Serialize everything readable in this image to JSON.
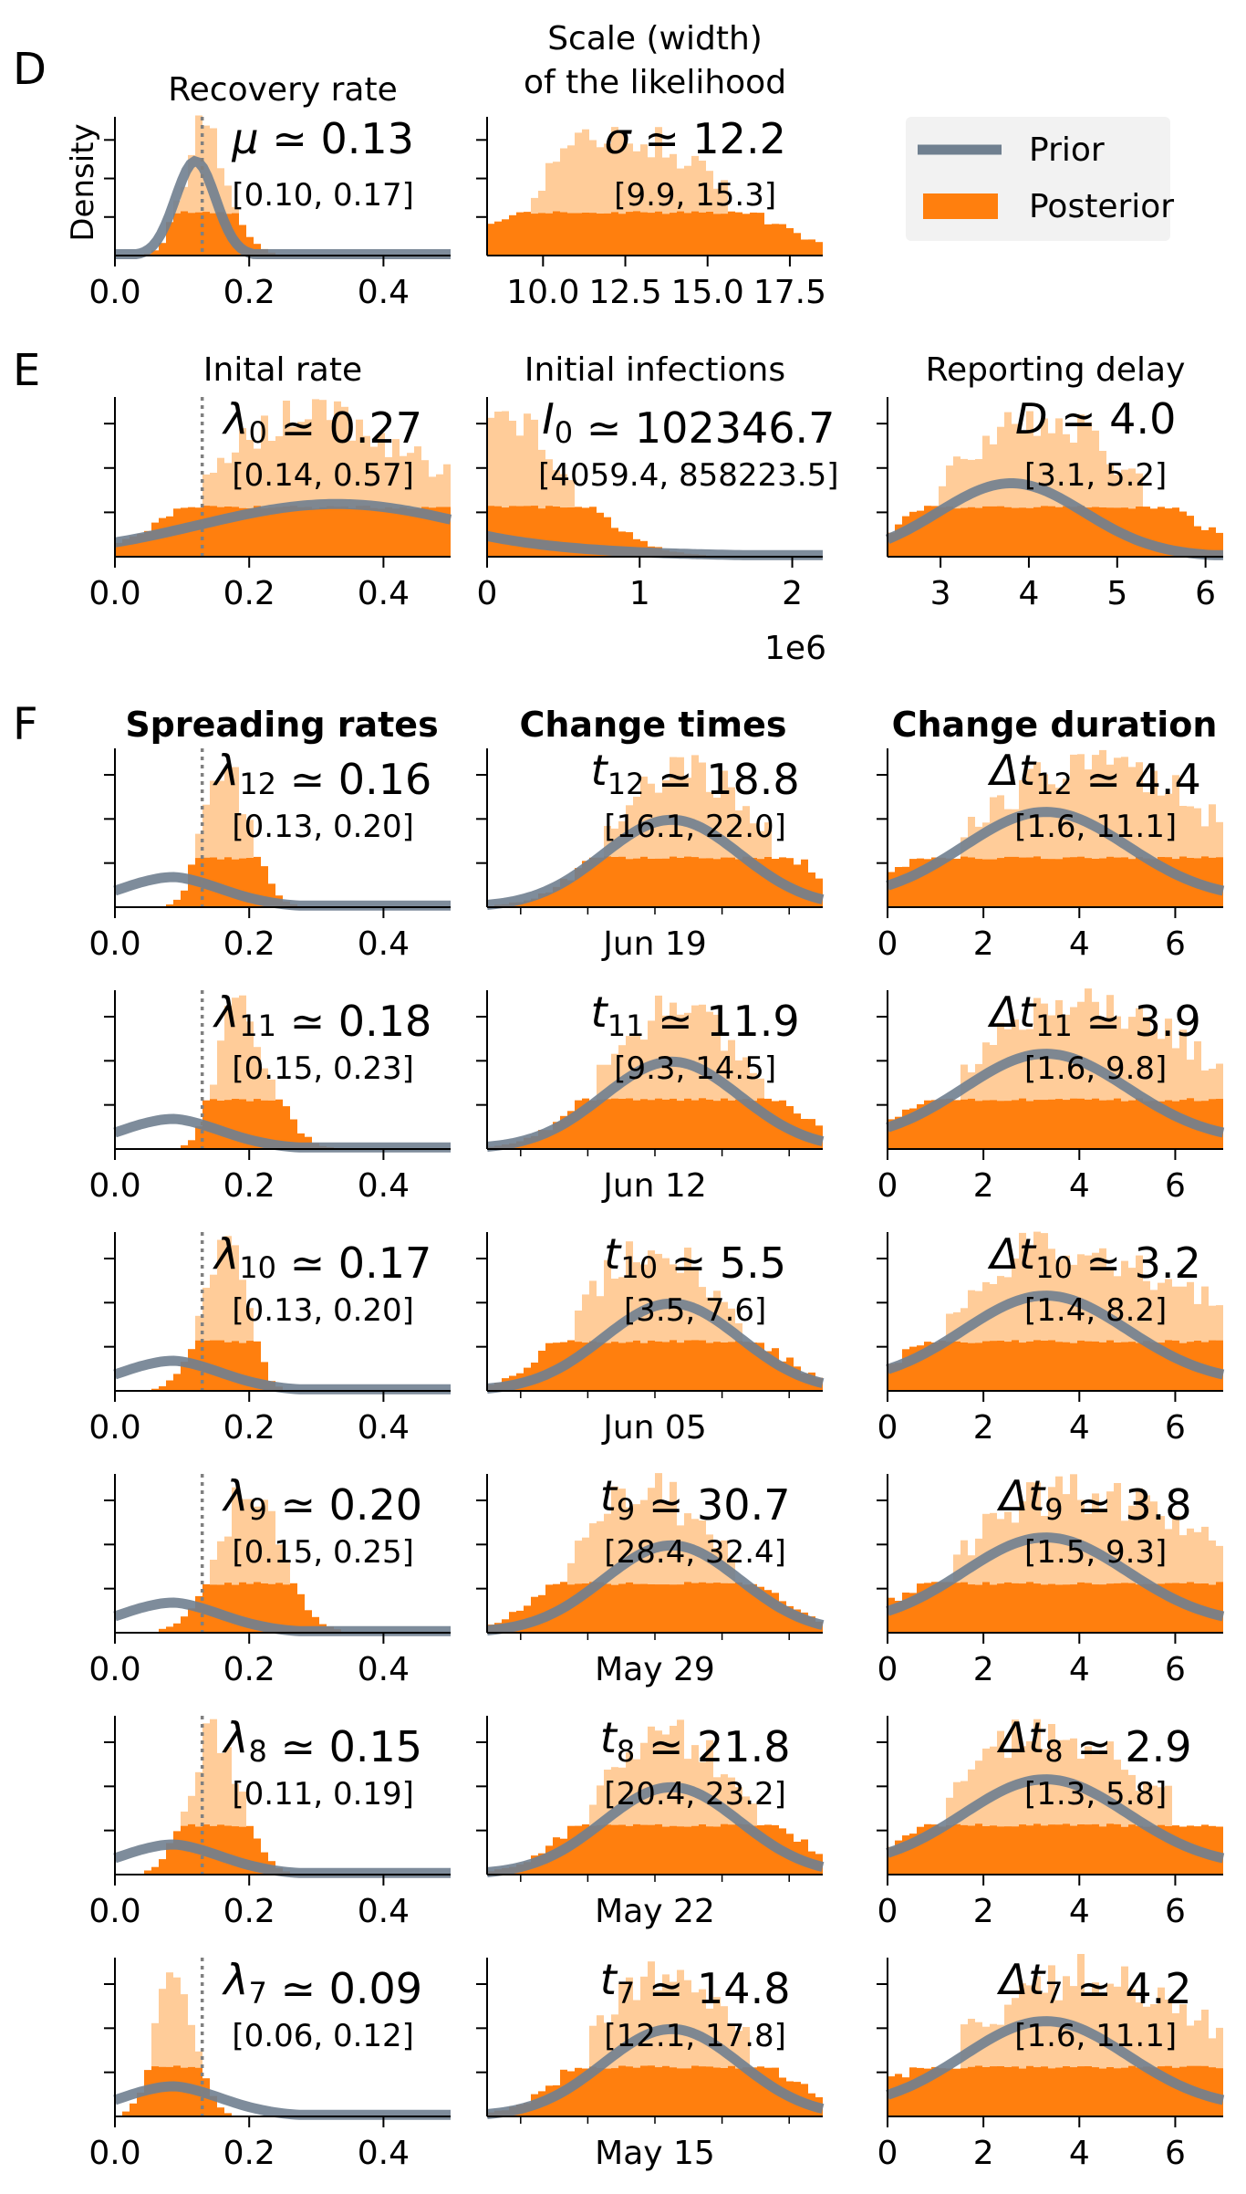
{
  "colors": {
    "prior": "#708090",
    "posterior": "#ff7f0e",
    "posterior_light": "#ffcc99",
    "marker": "#000000"
  },
  "legend": {
    "prior": "Prior",
    "posterior": "Posterior"
  },
  "panel_letters": {
    "D": "D",
    "E": "E",
    "F": "F"
  },
  "column_headers": {
    "spreading": "Spreading rates",
    "change_times": "Change times",
    "change_duration": "Change duration"
  },
  "axis_label_density": "Density",
  "tick_sets": {
    "rate": [
      "0.0",
      "0.2",
      "0.4"
    ],
    "sigma": [
      "10.0",
      "12.5",
      "15.0",
      "17.5"
    ],
    "infections": [
      "0",
      "1",
      "2"
    ],
    "delay": [
      "3",
      "4",
      "5",
      "6"
    ],
    "duration": [
      "0",
      "2",
      "4",
      "6"
    ]
  },
  "infections_offset": "1e6",
  "chart_data": [
    {
      "id": "recovery",
      "type": "histogram",
      "title": "Recovery rate",
      "xlim": [
        0,
        0.5
      ],
      "ticks": "rate",
      "vline": 0.13,
      "annotation": {
        "symbol": "μ",
        "sub": "",
        "value": "0.13",
        "ci": "[0.10, 0.17]"
      }
    },
    {
      "id": "scale",
      "type": "histogram",
      "title_lines": [
        "Scale (width)",
        "of the likelihood"
      ],
      "xlim": [
        8.3,
        18.5
      ],
      "ticks": "sigma",
      "annotation": {
        "symbol": "σ",
        "sub": "",
        "value": "12.2",
        "ci": "[9.9, 15.3]"
      }
    },
    {
      "id": "lambda0",
      "type": "histogram",
      "title": "Inital rate",
      "xlim": [
        0,
        0.5
      ],
      "ticks": "rate",
      "vline": 0.13,
      "annotation": {
        "symbol": "λ",
        "sub": "0",
        "value": "0.27",
        "ci": "[0.14, 0.57]"
      }
    },
    {
      "id": "I0",
      "type": "histogram",
      "title": "Initial infections",
      "xlim": [
        0,
        2.2
      ],
      "ticks": "infections",
      "x_unit": "1e6",
      "annotation": {
        "symbol": "I",
        "sub": "0",
        "value": "102346.7",
        "ci": "[4059.4, 858223.5]"
      }
    },
    {
      "id": "delay",
      "type": "histogram",
      "title": "Reporting delay",
      "xlim": [
        2.4,
        6.2
      ],
      "ticks": "delay",
      "annotation": {
        "symbol": "D",
        "sub": "",
        "value": "4.0",
        "ci": "[3.1, 5.2]"
      }
    },
    {
      "id": "l12",
      "type": "histogram",
      "xlim": [
        0,
        0.5
      ],
      "ticks": "rate",
      "vline": 0.13,
      "annotation": {
        "symbol": "λ",
        "sub": "12",
        "value": "0.16",
        "ci": "[0.13, 0.20]"
      }
    },
    {
      "id": "t12",
      "type": "histogram",
      "x_tick": "Jun 19",
      "annotation": {
        "symbol": "t",
        "sub": "12",
        "value": "18.8",
        "ci": "[16.1, 22.0]"
      }
    },
    {
      "id": "d12",
      "type": "histogram",
      "xlim": [
        0,
        7
      ],
      "ticks": "duration",
      "annotation": {
        "symbol": "Δt",
        "sub": "12",
        "value": "4.4",
        "ci": "[1.6, 11.1]"
      }
    },
    {
      "id": "l11",
      "type": "histogram",
      "xlim": [
        0,
        0.5
      ],
      "ticks": "rate",
      "vline": 0.13,
      "annotation": {
        "symbol": "λ",
        "sub": "11",
        "value": "0.18",
        "ci": "[0.15, 0.23]"
      }
    },
    {
      "id": "t11",
      "type": "histogram",
      "x_tick": "Jun 12",
      "annotation": {
        "symbol": "t",
        "sub": "11",
        "value": "11.9",
        "ci": "[9.3, 14.5]"
      }
    },
    {
      "id": "d11",
      "type": "histogram",
      "xlim": [
        0,
        7
      ],
      "ticks": "duration",
      "annotation": {
        "symbol": "Δt",
        "sub": "11",
        "value": "3.9",
        "ci": "[1.6, 9.8]"
      }
    },
    {
      "id": "l10",
      "type": "histogram",
      "xlim": [
        0,
        0.5
      ],
      "ticks": "rate",
      "vline": 0.13,
      "annotation": {
        "symbol": "λ",
        "sub": "10",
        "value": "0.17",
        "ci": "[0.13, 0.20]"
      }
    },
    {
      "id": "t10",
      "type": "histogram",
      "x_tick": "Jun 05",
      "annotation": {
        "symbol": "t",
        "sub": "10",
        "value": "5.5",
        "ci": "[3.5, 7.6]"
      }
    },
    {
      "id": "d10",
      "type": "histogram",
      "xlim": [
        0,
        7
      ],
      "ticks": "duration",
      "annotation": {
        "symbol": "Δt",
        "sub": "10",
        "value": "3.2",
        "ci": "[1.4, 8.2]"
      }
    },
    {
      "id": "l9",
      "type": "histogram",
      "xlim": [
        0,
        0.5
      ],
      "ticks": "rate",
      "vline": 0.13,
      "annotation": {
        "symbol": "λ",
        "sub": "9",
        "value": "0.20",
        "ci": "[0.15, 0.25]"
      }
    },
    {
      "id": "t9",
      "type": "histogram",
      "x_tick": "May 29",
      "annotation": {
        "symbol": "t",
        "sub": "9",
        "value": "30.7",
        "ci": "[28.4, 32.4]"
      }
    },
    {
      "id": "d9",
      "type": "histogram",
      "xlim": [
        0,
        7
      ],
      "ticks": "duration",
      "annotation": {
        "symbol": "Δt",
        "sub": "9",
        "value": "3.8",
        "ci": "[1.5, 9.3]"
      }
    },
    {
      "id": "l8",
      "type": "histogram",
      "xlim": [
        0,
        0.5
      ],
      "ticks": "rate",
      "vline": 0.13,
      "annotation": {
        "symbol": "λ",
        "sub": "8",
        "value": "0.15",
        "ci": "[0.11, 0.19]"
      }
    },
    {
      "id": "t8",
      "type": "histogram",
      "x_tick": "May 22",
      "annotation": {
        "symbol": "t",
        "sub": "8",
        "value": "21.8",
        "ci": "[20.4, 23.2]"
      }
    },
    {
      "id": "d8",
      "type": "histogram",
      "xlim": [
        0,
        7
      ],
      "ticks": "duration",
      "annotation": {
        "symbol": "Δt",
        "sub": "8",
        "value": "2.9",
        "ci": "[1.3, 5.8]"
      }
    },
    {
      "id": "l7",
      "type": "histogram",
      "xlim": [
        0,
        0.5
      ],
      "ticks": "rate",
      "vline": 0.13,
      "annotation": {
        "symbol": "λ",
        "sub": "7",
        "value": "0.09",
        "ci": "[0.06, 0.12]"
      }
    },
    {
      "id": "t7",
      "type": "histogram",
      "x_tick": "May 15",
      "annotation": {
        "symbol": "t",
        "sub": "7",
        "value": "14.8",
        "ci": "[12.1, 17.8]"
      }
    },
    {
      "id": "d7",
      "type": "histogram",
      "xlim": [
        0,
        7
      ],
      "ticks": "duration",
      "annotation": {
        "symbol": "Δt",
        "sub": "7",
        "value": "4.2",
        "ci": "[1.6, 11.1]"
      }
    }
  ]
}
